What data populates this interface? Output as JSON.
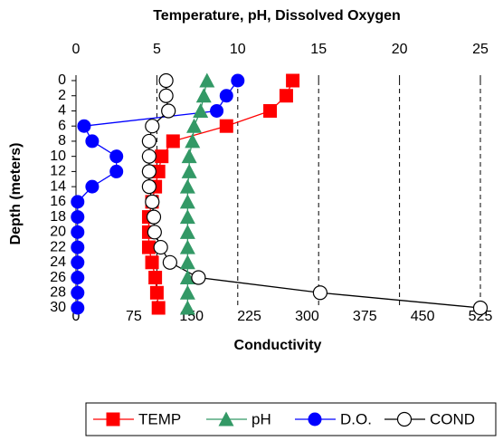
{
  "chart_data": {
    "type": "line",
    "title": "Temperature, pH, Dissolved Oxygen",
    "y_label": "Depth (meters)",
    "x2_label": "Conductivity",
    "y": [
      0,
      2,
      4,
      6,
      8,
      10,
      12,
      14,
      16,
      18,
      20,
      22,
      24,
      26,
      28,
      30
    ],
    "ylim": [
      0,
      30
    ],
    "yticks": [
      0,
      2,
      4,
      6,
      8,
      10,
      12,
      14,
      16,
      18,
      20,
      22,
      24,
      26,
      28,
      30
    ],
    "xlim": [
      0,
      25
    ],
    "xticks": [
      0,
      5,
      10,
      15,
      20,
      25
    ],
    "x2lim": [
      0,
      525
    ],
    "x2ticks": [
      0,
      75,
      150,
      225,
      300,
      375,
      450,
      525
    ],
    "grid": true,
    "series": [
      {
        "name": "TEMP",
        "color": "#ff0000",
        "marker": "square",
        "axis": "x",
        "values": [
          13.4,
          13.0,
          12.0,
          9.3,
          6.0,
          5.3,
          5.1,
          4.9,
          4.7,
          4.5,
          4.5,
          4.5,
          4.7,
          4.9,
          5.0,
          5.1
        ]
      },
      {
        "name": "pH",
        "color": "#339966",
        "marker": "triangle",
        "axis": "x",
        "values": [
          8.1,
          7.9,
          7.7,
          7.3,
          7.2,
          7.0,
          7.0,
          6.9,
          6.9,
          6.9,
          6.9,
          6.9,
          6.9,
          6.9,
          6.9,
          6.9
        ]
      },
      {
        "name": "D.O.",
        "color": "#0000ff",
        "marker": "circle",
        "axis": "x",
        "values": [
          10.0,
          9.3,
          8.7,
          0.5,
          1.0,
          2.5,
          2.5,
          1.0,
          0.1,
          0.1,
          0.1,
          0.1,
          0.1,
          0.1,
          0.1,
          0.1
        ]
      },
      {
        "name": "COND",
        "color": "#000000",
        "marker": "open-circle",
        "axis": "x2",
        "values": [
          117,
          117,
          120,
          99,
          95,
          95,
          95,
          95,
          99,
          101,
          102,
          110,
          122,
          159,
          317,
          525
        ]
      }
    ]
  }
}
